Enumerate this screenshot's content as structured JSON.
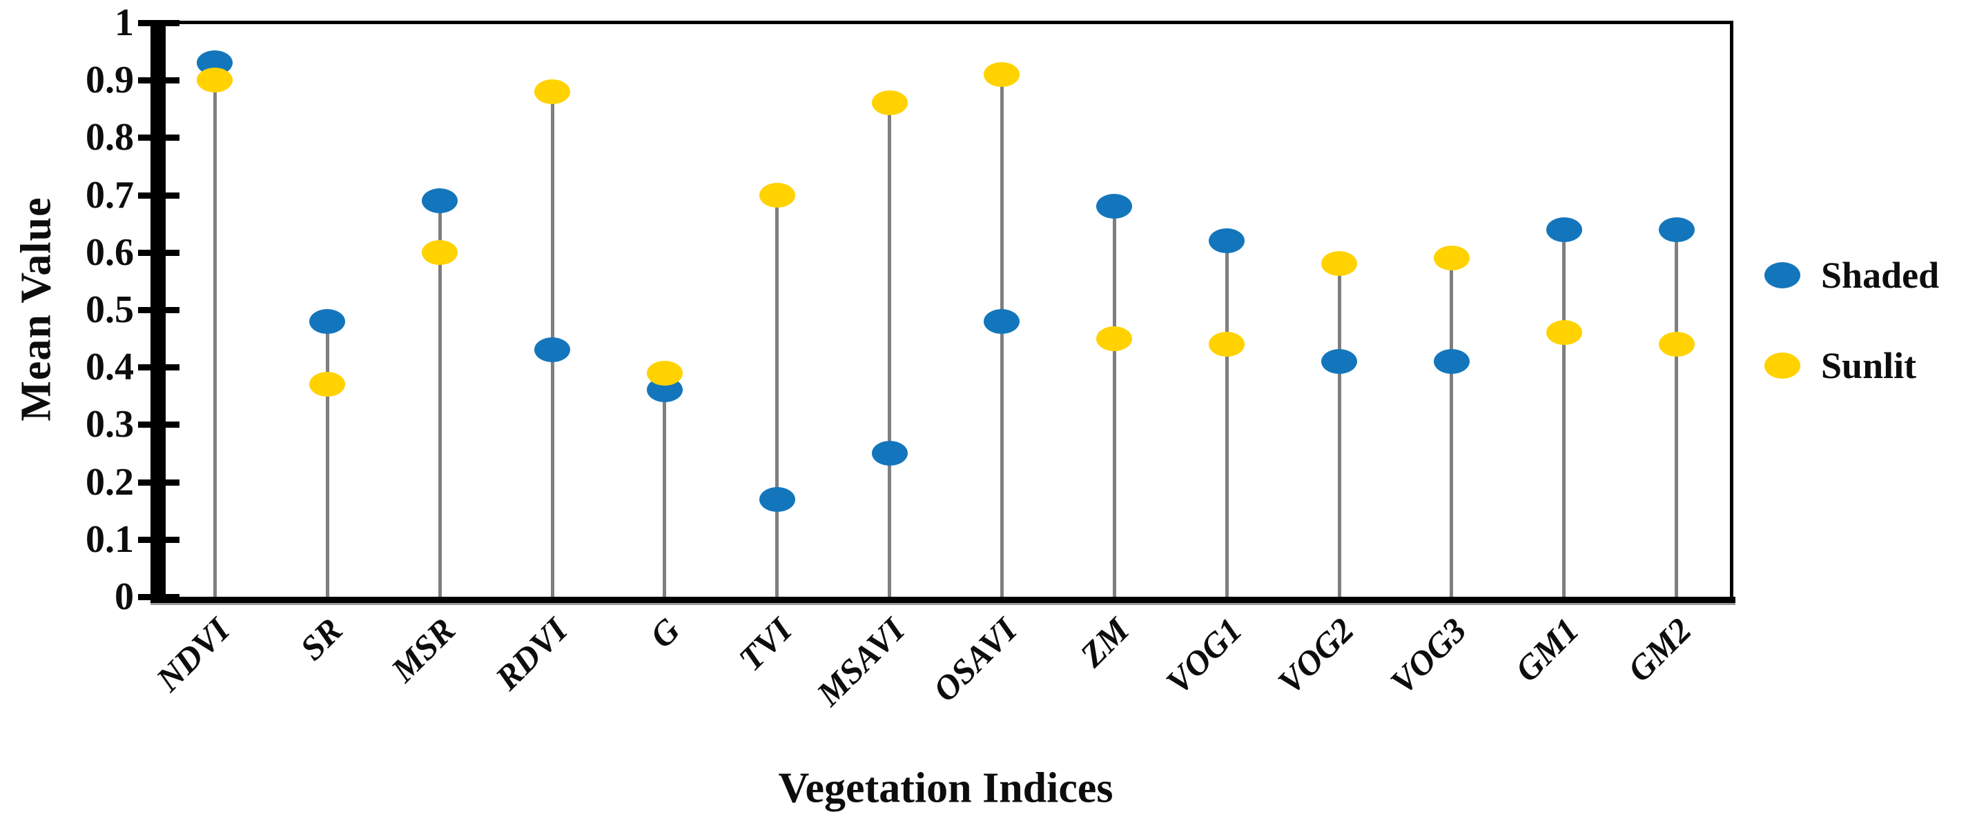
{
  "chart_data": {
    "type": "stem",
    "xlabel": "Vegetation Indices",
    "ylabel": "Mean Value",
    "categories": [
      "NDVI",
      "SR",
      "MSR",
      "RDVI",
      "G",
      "TVI",
      "MSAVI",
      "OSAVI",
      "ZM",
      "VOG1",
      "VOG2",
      "VOG3",
      "GM1",
      "GM2"
    ],
    "series": [
      {
        "name": "Shaded",
        "color": "#1376BC",
        "values": [
          0.93,
          0.48,
          0.69,
          0.43,
          0.36,
          0.17,
          0.25,
          0.48,
          0.68,
          0.62,
          0.41,
          0.41,
          0.64,
          0.64
        ]
      },
      {
        "name": "Sunlit",
        "color": "#FFD200",
        "values": [
          0.9,
          0.37,
          0.6,
          0.88,
          0.39,
          0.7,
          0.86,
          0.91,
          0.45,
          0.44,
          0.58,
          0.59,
          0.46,
          0.44
        ]
      }
    ],
    "ylim": [
      0,
      1
    ],
    "ytick_labels": [
      "0",
      "0.1",
      "0.2",
      "0.3",
      "0.4",
      "0.5",
      "0.6",
      "0.7",
      "0.8",
      "0.9",
      "1"
    ],
    "grid": false,
    "legend_position": "right",
    "stem_color": "#7f7f7f",
    "marker": "ellipse",
    "axis_color": "#000000"
  }
}
